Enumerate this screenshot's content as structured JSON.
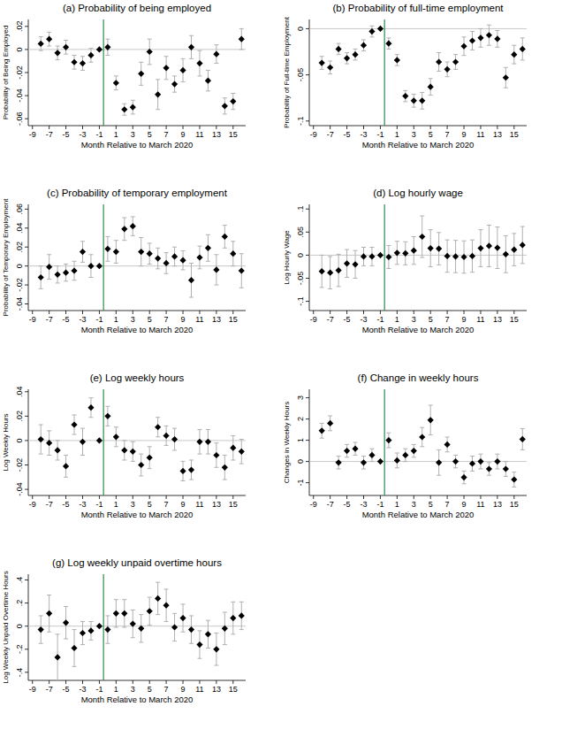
{
  "chart_data": [
    {
      "type": "scatter",
      "title": "(a) Probability of being employed",
      "x_label": "Month Relative to March 2020",
      "y_label": "Probability of Being Employed",
      "color": "#000000",
      "marker": "diamond",
      "grid": false,
      "x": [
        -8,
        -7,
        -6,
        -5,
        -4,
        -3,
        -2,
        -1,
        0,
        1,
        2,
        3,
        4,
        5,
        6,
        7,
        8,
        9,
        10,
        11,
        12,
        13,
        14,
        15,
        16
      ],
      "values": [
        0.005,
        0.009,
        -0.003,
        0.002,
        -0.011,
        -0.012,
        -0.005,
        0,
        0.002,
        -0.029,
        -0.052,
        -0.05,
        -0.021,
        -0.002,
        -0.039,
        -0.016,
        -0.03,
        -0.018,
        0.002,
        -0.012,
        -0.027,
        -0.004,
        -0.049,
        -0.045,
        0.009
      ],
      "errors": [
        0.006,
        0.006,
        0.006,
        0.006,
        0.006,
        0.006,
        0.006,
        0,
        0.007,
        0.006,
        0.005,
        0.006,
        0.01,
        0.011,
        0.013,
        0.01,
        0.007,
        0.01,
        0.01,
        0.011,
        0.009,
        0.008,
        0.007,
        0.007,
        0.009
      ],
      "xlim": [
        -9.5,
        16.5
      ],
      "xticks": [
        -9,
        -7,
        -5,
        -3,
        -1,
        1,
        3,
        5,
        7,
        9,
        11,
        13,
        15
      ],
      "ylim": [
        -0.066,
        0.026
      ],
      "yticks": [
        {
          "value": -0.06,
          "label": "-.06"
        },
        {
          "value": -0.04,
          "label": "-.04"
        },
        {
          "value": -0.02,
          "label": "-.02"
        },
        0,
        {
          "value": 0.02,
          "label": ".02"
        }
      ],
      "hline": 0,
      "vline": -0.5
    },
    {
      "type": "scatter",
      "title": "(b) Probability of full-time employment",
      "x_label": "Month Relative to March 2020",
      "y_label": "Probability of Full-time Employment",
      "color": "#000000",
      "marker": "diamond",
      "grid": false,
      "x": [
        -8,
        -7,
        -6,
        -5,
        -4,
        -3,
        -2,
        -1,
        0,
        1,
        2,
        3,
        4,
        5,
        6,
        7,
        8,
        9,
        10,
        11,
        12,
        13,
        14,
        15,
        16
      ],
      "values": [
        -0.037,
        -0.042,
        -0.022,
        -0.032,
        -0.028,
        -0.018,
        -0.003,
        0,
        -0.016,
        -0.034,
        -0.073,
        -0.078,
        -0.078,
        -0.063,
        -0.036,
        -0.044,
        -0.036,
        -0.019,
        -0.013,
        -0.01,
        -0.007,
        -0.011,
        -0.053,
        -0.028,
        -0.022
      ],
      "errors": [
        0.007,
        0.007,
        0.006,
        0.006,
        0.006,
        0.006,
        0.006,
        0,
        0.006,
        0.006,
        0.006,
        0.007,
        0.009,
        0.009,
        0.01,
        0.008,
        0.008,
        0.01,
        0.01,
        0.01,
        0.011,
        0.009,
        0.011,
        0.01,
        0.012
      ],
      "xlim": [
        -9.5,
        16.5
      ],
      "xticks": [
        -9,
        -7,
        -5,
        -3,
        -1,
        1,
        3,
        5,
        7,
        9,
        11,
        13,
        15
      ],
      "ylim": [
        -0.105,
        0.01
      ],
      "yticks": [
        {
          "value": -0.1,
          "label": "-.1"
        },
        {
          "value": -0.05,
          "label": "-.05"
        },
        0
      ],
      "hline": 0,
      "vline": -0.5
    },
    {
      "type": "scatter",
      "title": "(c) Probability of temporary employment",
      "x_label": "Month Relative to March 2020",
      "y_label": "Probability of Temporary Employment",
      "color": "#000000",
      "marker": "diamond",
      "grid": false,
      "x": [
        -8,
        -7,
        -6,
        -5,
        -4,
        -3,
        -2,
        -1,
        0,
        1,
        2,
        3,
        4,
        5,
        6,
        7,
        8,
        9,
        10,
        11,
        12,
        13,
        14,
        15,
        16
      ],
      "values": [
        -0.012,
        -0.001,
        -0.009,
        -0.007,
        -0.005,
        0.015,
        0.0,
        0,
        0.018,
        0.015,
        0.039,
        0.042,
        0.015,
        0.013,
        0.008,
        0.003,
        0.01,
        0.006,
        -0.015,
        0.009,
        0.019,
        -0.004,
        0.031,
        0.013,
        -0.005
      ],
      "errors": [
        0.012,
        0.013,
        0.009,
        0.009,
        0.01,
        0.011,
        0.012,
        0,
        0.013,
        0.012,
        0.012,
        0.01,
        0.015,
        0.011,
        0.011,
        0.011,
        0.01,
        0.01,
        0.018,
        0.012,
        0.014,
        0.016,
        0.012,
        0.013,
        0.018
      ],
      "xlim": [
        -9.5,
        16.5
      ],
      "xticks": [
        -9,
        -7,
        -5,
        -3,
        -1,
        1,
        3,
        5,
        7,
        9,
        11,
        13,
        15
      ],
      "ylim": [
        -0.047,
        0.065
      ],
      "yticks": [
        {
          "value": -0.04,
          "label": "-.04"
        },
        {
          "value": -0.02,
          "label": "-.02"
        },
        0,
        {
          "value": 0.02,
          "label": ".02"
        },
        {
          "value": 0.04,
          "label": ".04"
        },
        {
          "value": 0.06,
          "label": ".06"
        }
      ],
      "hline": 0,
      "vline": -0.5
    },
    {
      "type": "scatter",
      "title": "(d) Log hourly wage",
      "x_label": "Month Relative to March 2020",
      "y_label": "Log Hourly Wage",
      "color": "#000000",
      "marker": "diamond",
      "grid": false,
      "x": [
        -8,
        -7,
        -6,
        -5,
        -4,
        -3,
        -2,
        -1,
        0,
        1,
        2,
        3,
        4,
        5,
        6,
        7,
        8,
        9,
        10,
        11,
        12,
        13,
        14,
        15,
        16
      ],
      "values": [
        -0.035,
        -0.038,
        -0.033,
        -0.018,
        -0.02,
        -0.003,
        -0.003,
        0,
        -0.004,
        0.005,
        0.004,
        0.01,
        0.04,
        0.015,
        0.014,
        -0.002,
        -0.003,
        -0.004,
        -0.002,
        0.015,
        0.02,
        0.016,
        0.002,
        0.012,
        0.022
      ],
      "errors": [
        0.035,
        0.035,
        0.035,
        0.03,
        0.03,
        0.02,
        0.02,
        0,
        0.025,
        0.025,
        0.025,
        0.03,
        0.045,
        0.04,
        0.035,
        0.035,
        0.035,
        0.035,
        0.035,
        0.04,
        0.045,
        0.045,
        0.04,
        0.035,
        0.04
      ],
      "xlim": [
        -9.5,
        16.5
      ],
      "xticks": [
        -9,
        -7,
        -5,
        -3,
        -1,
        1,
        3,
        5,
        7,
        9,
        11,
        13,
        15
      ],
      "ylim": [
        -0.12,
        0.11
      ],
      "yticks": [
        {
          "value": -0.1,
          "label": "-.1"
        },
        {
          "value": -0.05,
          "label": "-.05"
        },
        0,
        {
          "value": 0.05,
          "label": ".05"
        },
        {
          "value": 0.1,
          "label": ".1"
        }
      ],
      "hline": 0,
      "vline": -0.5
    },
    {
      "type": "scatter",
      "title": "(e) Log weekly hours",
      "x_label": "Month Relative to March 2020",
      "y_label": "Log Weekly Hours",
      "color": "#000000",
      "marker": "diamond",
      "grid": false,
      "x": [
        -8,
        -7,
        -6,
        -5,
        -4,
        -3,
        -2,
        -1,
        0,
        1,
        2,
        3,
        4,
        5,
        6,
        7,
        8,
        9,
        10,
        11,
        12,
        13,
        14,
        15,
        16
      ],
      "values": [
        0.001,
        -0.002,
        -0.008,
        -0.021,
        0.013,
        -0.001,
        0.027,
        0,
        0.02,
        0.003,
        -0.008,
        -0.009,
        -0.02,
        -0.014,
        0.011,
        0.004,
        0.001,
        -0.025,
        -0.024,
        -0.001,
        -0.001,
        -0.012,
        -0.022,
        -0.006,
        -0.009
      ],
      "errors": [
        0.012,
        0.01,
        0.008,
        0.009,
        0.008,
        0.011,
        0.008,
        0,
        0.008,
        0.008,
        0.008,
        0.008,
        0.009,
        0.009,
        0.008,
        0.008,
        0.009,
        0.008,
        0.008,
        0.01,
        0.01,
        0.01,
        0.01,
        0.01,
        0.01
      ],
      "xlim": [
        -9.5,
        16.5
      ],
      "xticks": [
        -9,
        -7,
        -5,
        -3,
        -1,
        1,
        3,
        5,
        7,
        9,
        11,
        13,
        15
      ],
      "ylim": [
        -0.045,
        0.042
      ],
      "yticks": [
        {
          "value": -0.04,
          "label": "-.04"
        },
        {
          "value": -0.02,
          "label": "-.02"
        },
        0,
        {
          "value": 0.02,
          "label": ".02"
        },
        {
          "value": 0.04,
          "label": ".04"
        }
      ],
      "hline": 0,
      "vline": -0.5
    },
    {
      "type": "scatter",
      "title": "(f) Change in weekly hours",
      "x_label": "Month Relative to March 2020",
      "y_label": "Changes in Weekly Hours",
      "color": "#000000",
      "marker": "diamond",
      "grid": false,
      "x": [
        -8,
        -7,
        -6,
        -5,
        -4,
        -3,
        -2,
        -1,
        0,
        1,
        2,
        3,
        4,
        5,
        6,
        7,
        8,
        9,
        10,
        11,
        12,
        13,
        14,
        15,
        16
      ],
      "values": [
        1.45,
        1.8,
        -0.05,
        0.5,
        0.6,
        -0.05,
        0.3,
        0,
        1.0,
        0.05,
        0.3,
        0.5,
        1.15,
        1.95,
        -0.05,
        0.8,
        0.0,
        -0.75,
        -0.1,
        0.0,
        -0.35,
        0.0,
        -0.35,
        -0.85,
        1.05
      ],
      "errors": [
        0.35,
        0.35,
        0.3,
        0.3,
        0.3,
        0.3,
        0.3,
        0,
        0.35,
        0.35,
        0.3,
        0.3,
        0.45,
        0.7,
        0.6,
        0.35,
        0.3,
        0.3,
        0.35,
        0.35,
        0.3,
        0.35,
        0.35,
        0.35,
        0.5
      ],
      "xlim": [
        -9.5,
        16.5
      ],
      "xticks": [
        -9,
        -7,
        -5,
        -3,
        -1,
        1,
        3,
        5,
        7,
        9,
        11,
        13,
        15
      ],
      "ylim": [
        -1.6,
        3.4
      ],
      "yticks": [
        -1,
        0,
        1,
        2,
        3
      ],
      "hline": 0,
      "vline": -0.5
    },
    {
      "type": "scatter",
      "title": "(g) Log weekly unpaid overtime hours",
      "x_label": "Month Relative to March 2020",
      "y_label": "Log Weekly Unpaid Overtime Hours",
      "color": "#000000",
      "marker": "diamond",
      "grid": false,
      "x": [
        -8,
        -7,
        -6,
        -5,
        -4,
        -3,
        -2,
        -1,
        0,
        1,
        2,
        3,
        4,
        5,
        6,
        7,
        8,
        9,
        10,
        11,
        12,
        13,
        14,
        15,
        16
      ],
      "values": [
        -0.03,
        0.11,
        -0.27,
        0.03,
        -0.19,
        -0.06,
        -0.04,
        0,
        -0.03,
        0.11,
        0.11,
        0.02,
        -0.02,
        0.13,
        0.24,
        0.18,
        -0.01,
        0.07,
        -0.03,
        -0.16,
        -0.07,
        -0.2,
        -0.02,
        0.07,
        0.09
      ],
      "errors": [
        0.12,
        0.16,
        0.2,
        0.14,
        0.16,
        0.1,
        0.08,
        0,
        0.12,
        0.12,
        0.12,
        0.12,
        0.12,
        0.12,
        0.14,
        0.14,
        0.12,
        0.12,
        0.12,
        0.12,
        0.12,
        0.14,
        0.14,
        0.14,
        0.12
      ],
      "xlim": [
        -9.5,
        16.5
      ],
      "xticks": [
        -9,
        -7,
        -5,
        -3,
        -1,
        1,
        3,
        5,
        7,
        9,
        11,
        13,
        15
      ],
      "ylim": [
        -0.47,
        0.45
      ],
      "yticks": [
        {
          "value": -0.4,
          "label": "-.4"
        },
        {
          "value": -0.2,
          "label": "-.2"
        },
        0,
        {
          "value": 0.2,
          "label": ".2"
        },
        {
          "value": 0.4,
          "label": ".4"
        }
      ],
      "hline": 0,
      "vline": -0.5
    }
  ]
}
